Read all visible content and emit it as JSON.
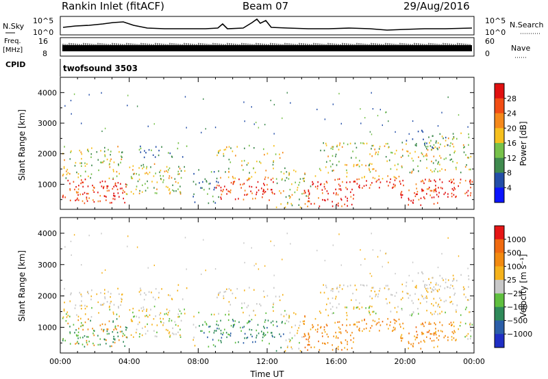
{
  "header": {
    "station": "Rankin Inlet (fitACF)",
    "beam": "Beam 07",
    "date": "29/Aug/2016"
  },
  "panels": {
    "nsky_label": "N.Sky",
    "nsearch_label": "N.Search",
    "nsky_ticks": [
      "10^5",
      "10^0"
    ],
    "nsearch_ticks": [
      "10^5",
      "10^0"
    ],
    "freq_label": "Freq.",
    "freq_unit": "[MHz]",
    "freq_ticks": [
      "16",
      "8"
    ],
    "nave_label": "Nave",
    "nave_ticks": [
      "60",
      "0"
    ],
    "cpid_label": "CPID",
    "cpid_value": "twofsound 3503"
  },
  "chart_data": [
    {
      "type": "heatmap",
      "name": "power",
      "ylabel": "Slant Range [km]",
      "ylim": [
        180,
        4500
      ],
      "yticks": [
        1000,
        2000,
        3000,
        4000
      ],
      "xlim": [
        0,
        24
      ],
      "colorbar_label": "Power [dB]",
      "colorbar_ticks": [
        "28",
        "24",
        "20",
        "16",
        "12",
        "8",
        "4"
      ],
      "colors": [
        "#0a14ff",
        "#234ea8",
        "#3f8a4e",
        "#77c14a",
        "#f6c01e",
        "#f5891b",
        "#f24d14",
        "#e01010"
      ],
      "grid": false
    },
    {
      "type": "heatmap",
      "name": "velocity",
      "ylabel": "Slant Range [km]",
      "ylim": [
        180,
        4500
      ],
      "yticks": [
        1000,
        2000,
        3000,
        4000
      ],
      "xlim": [
        0,
        24
      ],
      "xlabel": "Time UT",
      "xtick_labels": [
        "00:00",
        "04:00",
        "08:00",
        "12:00",
        "16:00",
        "20:00",
        "00:00"
      ],
      "colorbar_label": "Velocity [m s⁻¹]",
      "colorbar_ticks": [
        "1000",
        "500",
        "100",
        "25",
        "−25",
        "−100",
        "−500",
        "−1000"
      ],
      "colors": [
        "#1f2ec4",
        "#2b5ea8",
        "#2f8a5a",
        "#5fbf3f",
        "#c8c8c8",
        "#f5b21c",
        "#f28a10",
        "#f06a10",
        "#e51515"
      ],
      "grid": false
    }
  ]
}
